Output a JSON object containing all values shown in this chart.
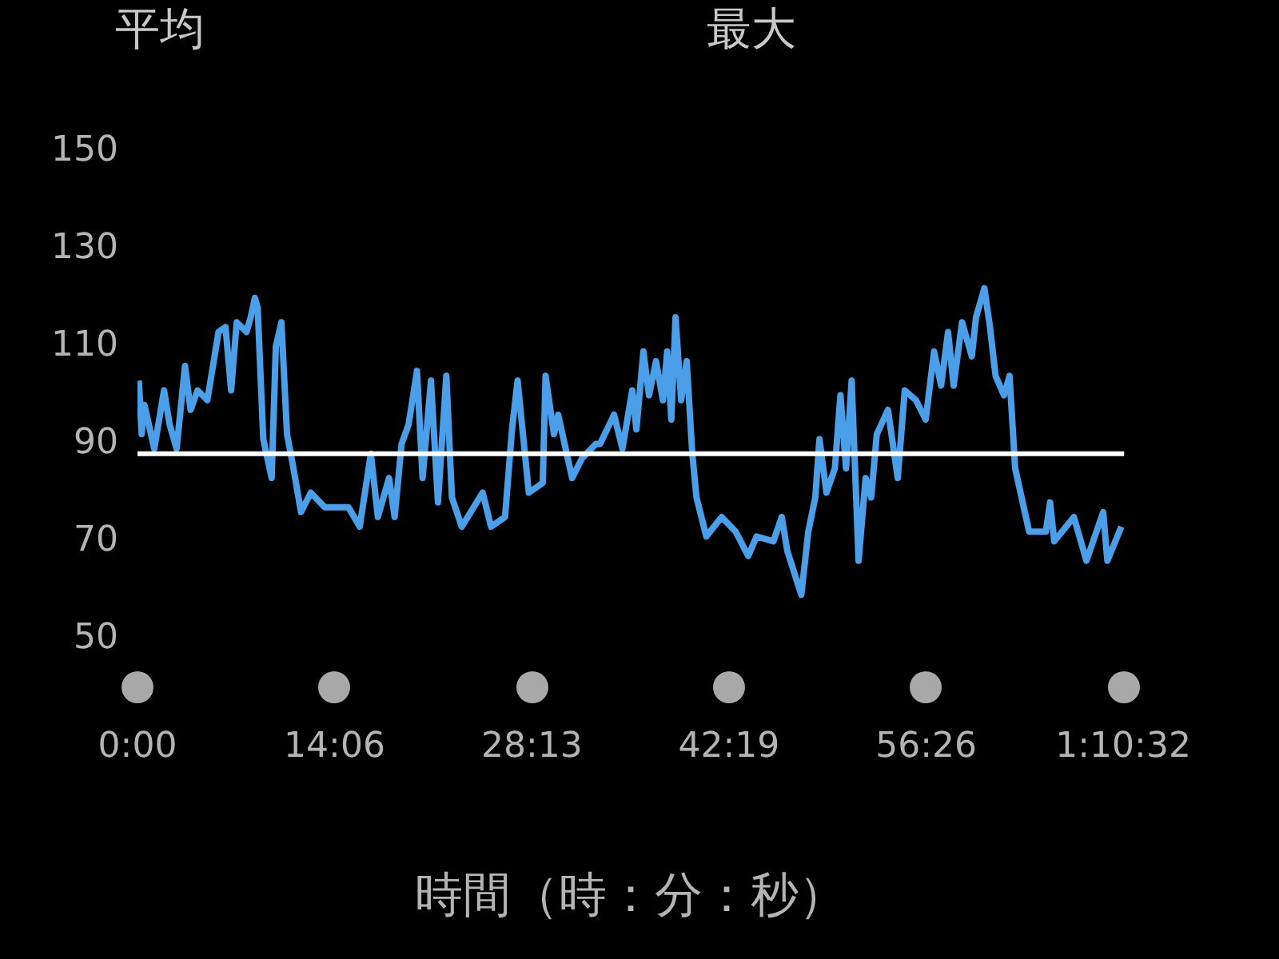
{
  "chart_data": {
    "type": "line",
    "annotations": [
      "平均",
      "最大"
    ],
    "xlabel": "時間（時：分：秒）",
    "xlim": [
      0,
      70.6
    ],
    "xticks": [
      {
        "value": 0,
        "label": "0:00"
      },
      {
        "value": 14.1,
        "label": "14:06"
      },
      {
        "value": 28.2167,
        "label": "28:13"
      },
      {
        "value": 42.3167,
        "label": "42:19"
      },
      {
        "value": 56.4333,
        "label": "56:26"
      },
      {
        "value": 70.5333,
        "label": "1:10:32"
      }
    ],
    "ylim": [
      50,
      150
    ],
    "yticks": [
      50,
      70,
      90,
      110,
      130,
      150
    ],
    "legend": false,
    "marker": "none",
    "line_style": "solid",
    "ref_lines": [
      {
        "axis": "y",
        "value": 88,
        "color": "#ffffff"
      }
    ],
    "series": [
      {
        "color": "#4a9fe8",
        "x": [
          0.1,
          0.3,
          0.5,
          1.2,
          1.9,
          2.3,
          2.8,
          3.4,
          3.8,
          4.3,
          5.0,
          5.8,
          6.3,
          6.7,
          7.1,
          7.8,
          8.1,
          8.4,
          8.6,
          9.0,
          9.6,
          9.9,
          10.3,
          10.7,
          11.1,
          11.7,
          12.4,
          13.4,
          15.1,
          15.9,
          16.7,
          17.2,
          18.0,
          18.4,
          18.9,
          19.4,
          20.0,
          20.4,
          21.0,
          21.5,
          22.1,
          22.5,
          23.2,
          24.7,
          25.3,
          26.3,
          26.8,
          27.2,
          28.0,
          29.0,
          29.2,
          29.8,
          30.1,
          31.1,
          31.8,
          32.8,
          33.1,
          34.1,
          34.7,
          35.4,
          35.7,
          36.2,
          36.6,
          37.1,
          37.6,
          37.9,
          38.2,
          38.5,
          38.9,
          39.3,
          39.7,
          40.0,
          40.7,
          41.8,
          42.8,
          43.7,
          44.3,
          45.5,
          46.1,
          46.5,
          47.5,
          48.0,
          48.5,
          48.8,
          49.3,
          49.9,
          50.3,
          50.7,
          51.1,
          51.6,
          52.1,
          52.5,
          52.9,
          53.7,
          54.4,
          54.9,
          55.7,
          56.4,
          57.0,
          57.5,
          58.0,
          58.4,
          59.0,
          59.7,
          60.0,
          60.6,
          61.0,
          61.4,
          62.0,
          62.4,
          62.8,
          63.8,
          65.0,
          65.3,
          65.6,
          67.0,
          67.9,
          69.1,
          69.4,
          70.4
        ],
        "values": [
          103,
          92,
          98,
          89,
          101,
          94,
          89,
          106,
          97,
          101,
          99,
          113,
          114,
          101,
          115,
          113,
          116,
          120,
          118,
          91,
          83,
          110,
          115,
          92,
          86,
          76,
          80,
          77,
          77,
          73,
          88,
          75,
          83,
          75,
          90,
          94,
          105,
          83,
          103,
          78,
          104,
          79,
          73,
          80,
          73,
          75,
          93,
          103,
          80,
          82,
          104,
          92,
          96,
          83,
          87,
          90,
          90,
          96,
          89,
          101,
          93,
          109,
          100,
          107,
          99,
          109,
          95,
          116,
          99,
          107,
          88,
          79,
          71,
          75,
          72,
          67,
          71,
          70,
          75,
          68,
          59,
          72,
          79,
          91,
          80,
          85,
          100,
          85,
          103,
          66,
          83,
          79,
          92,
          97,
          83,
          101,
          99,
          95,
          109,
          102,
          113,
          102,
          115,
          108,
          116,
          122,
          114,
          104,
          100,
          104,
          85,
          72,
          72,
          78,
          70,
          75,
          66,
          76,
          66,
          73
        ]
      }
    ]
  }
}
